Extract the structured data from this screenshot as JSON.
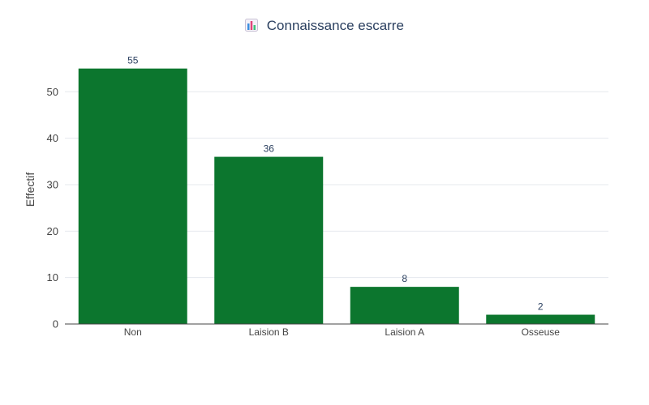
{
  "chart_data": {
    "type": "bar",
    "title": "Connaissance escarre",
    "title_icon": "bar-chart-icon",
    "xlabel": "",
    "ylabel": "Effectif",
    "categories": [
      "Non",
      "Laision B",
      "Laision A",
      "Osseuse"
    ],
    "values": [
      55,
      36,
      8,
      2
    ],
    "ylim": [
      0,
      57.9
    ],
    "yticks": [
      0,
      10,
      20,
      30,
      40,
      50
    ],
    "grid": true,
    "legend": "none",
    "bar_color": "#0c762e",
    "grid_color": "#e5e8ee",
    "axis_text_color": "#444444",
    "data_label_color": "#2a3f5f"
  }
}
